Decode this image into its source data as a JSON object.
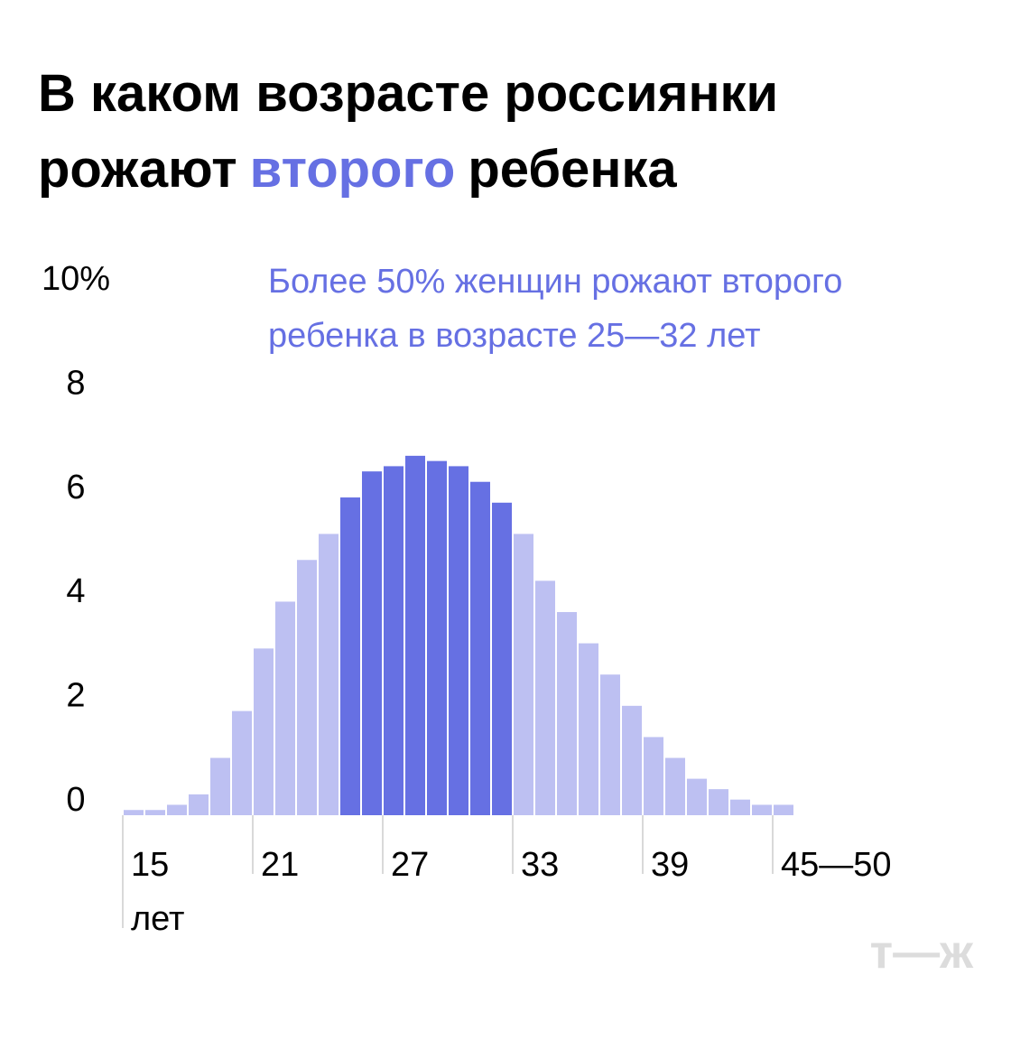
{
  "chart_data": {
    "type": "bar",
    "title": {
      "start": "В каком возрасте россиянки рожают",
      "highlight": "второго",
      "end": "ребенка"
    },
    "annotation": "Более 50% женщин рожают второго ребенка в возрасте 25—32 лет",
    "categories": [
      "15 лет",
      null,
      null,
      null,
      null,
      null,
      "21",
      null,
      null,
      null,
      null,
      null,
      "27",
      null,
      null,
      null,
      null,
      null,
      "33",
      null,
      null,
      null,
      null,
      null,
      "39",
      null,
      null,
      null,
      null,
      null,
      "45—50"
    ],
    "values": [
      0.1,
      0.1,
      0.2,
      0.4,
      1.1,
      2.0,
      3.2,
      4.1,
      4.9,
      5.4,
      6.1,
      6.6,
      6.7,
      6.9,
      6.8,
      6.7,
      6.4,
      6.0,
      5.4,
      4.5,
      3.9,
      3.3,
      2.7,
      2.1,
      1.5,
      1.1,
      0.7,
      0.5,
      0.3,
      0.2,
      0.2
    ],
    "colors": [
      "#bdc0f2",
      "#bdc0f2",
      "#bdc0f2",
      "#bdc0f2",
      "#bdc0f2",
      "#bdc0f2",
      "#bdc0f2",
      "#bdc0f2",
      "#bdc0f2",
      "#bdc0f2",
      "#6670e3",
      "#6670e3",
      "#6670e3",
      "#6670e3",
      "#6670e3",
      "#6670e3",
      "#6670e3",
      "#6670e3",
      "#bdc0f2",
      "#bdc0f2",
      "#bdc0f2",
      "#bdc0f2",
      "#bdc0f2",
      "#bdc0f2",
      "#bdc0f2",
      "#bdc0f2",
      "#bdc0f2",
      "#bdc0f2",
      "#bdc0f2",
      "#bdc0f2",
      "#bdc0f2"
    ],
    "ylim": [
      0,
      10
    ],
    "yticks": [
      0,
      2,
      4,
      6,
      8,
      {
        "value": 10,
        "label": "10%"
      }
    ],
    "logo": "т—ж"
  }
}
